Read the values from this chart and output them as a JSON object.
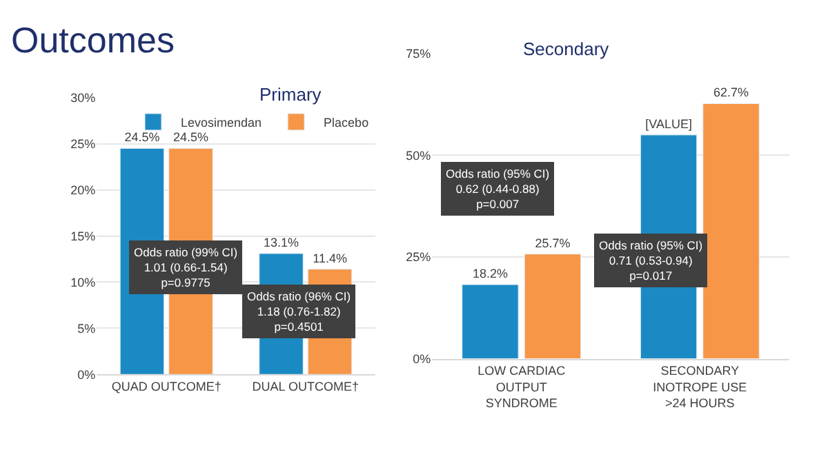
{
  "chart_data": [
    {
      "type": "bar",
      "title": "Primary",
      "categories": [
        "QUAD OUTCOME†",
        "DUAL OUTCOME†"
      ],
      "series": [
        {
          "name": "Levosimendan",
          "color": "#1b8ac4",
          "values": [
            24.5,
            13.1
          ],
          "value_labels": [
            "24.5%",
            "13.1%"
          ]
        },
        {
          "name": "Placebo",
          "color": "#f79646",
          "values": [
            24.5,
            11.4
          ],
          "value_labels": [
            "24.5%",
            "11.4%"
          ]
        }
      ],
      "ylim": [
        0,
        30
      ],
      "yticks": [
        {
          "value": 0,
          "label": "0%"
        },
        {
          "value": 5,
          "label": "5%"
        },
        {
          "value": 10,
          "label": "10%"
        },
        {
          "value": 15,
          "label": "15%"
        },
        {
          "value": 20,
          "label": "20%"
        },
        {
          "value": 25,
          "label": "25%"
        },
        {
          "value": 30,
          "label": "30%"
        }
      ],
      "grid": "y",
      "legend": "top right",
      "annotations": [
        "Outcomes",
        "Odds ratio (99% CI)\n1.01 (0.66-1.54)\np=0.9775",
        "Odds ratio (96% CI)\n1.18 (0.76-1.82)\np=0.4501"
      ]
    },
    {
      "type": "bar",
      "title": "Secondary",
      "categories": [
        "LOW CARDIAC\nOUTPUT\nSYNDROME",
        "SECONDARY\nINOTROPE USE\n>24 HOURS"
      ],
      "series": [
        {
          "color": "#1b8ac4",
          "values": [
            18.2,
            55.0
          ],
          "value_labels": [
            "18.2%",
            "[VALUE]"
          ]
        },
        {
          "color": "#f79646",
          "values": [
            25.7,
            62.7
          ],
          "value_labels": [
            "25.7%",
            "62.7%"
          ]
        }
      ],
      "ylim": [
        0,
        75
      ],
      "yticks": [
        {
          "value": 0,
          "label": "0%"
        },
        {
          "value": 25,
          "label": "25%"
        },
        {
          "value": 50,
          "label": "50%"
        },
        {
          "value": 75,
          "label": "75%"
        }
      ],
      "grid": "y",
      "annotations": [
        "Odds ratio (95% CI)\n0.62 (0.44-0.88)\np=0.007",
        "Odds ratio (95% CI)\n0.71 (0.53-0.94)\np=0.017"
      ]
    }
  ]
}
